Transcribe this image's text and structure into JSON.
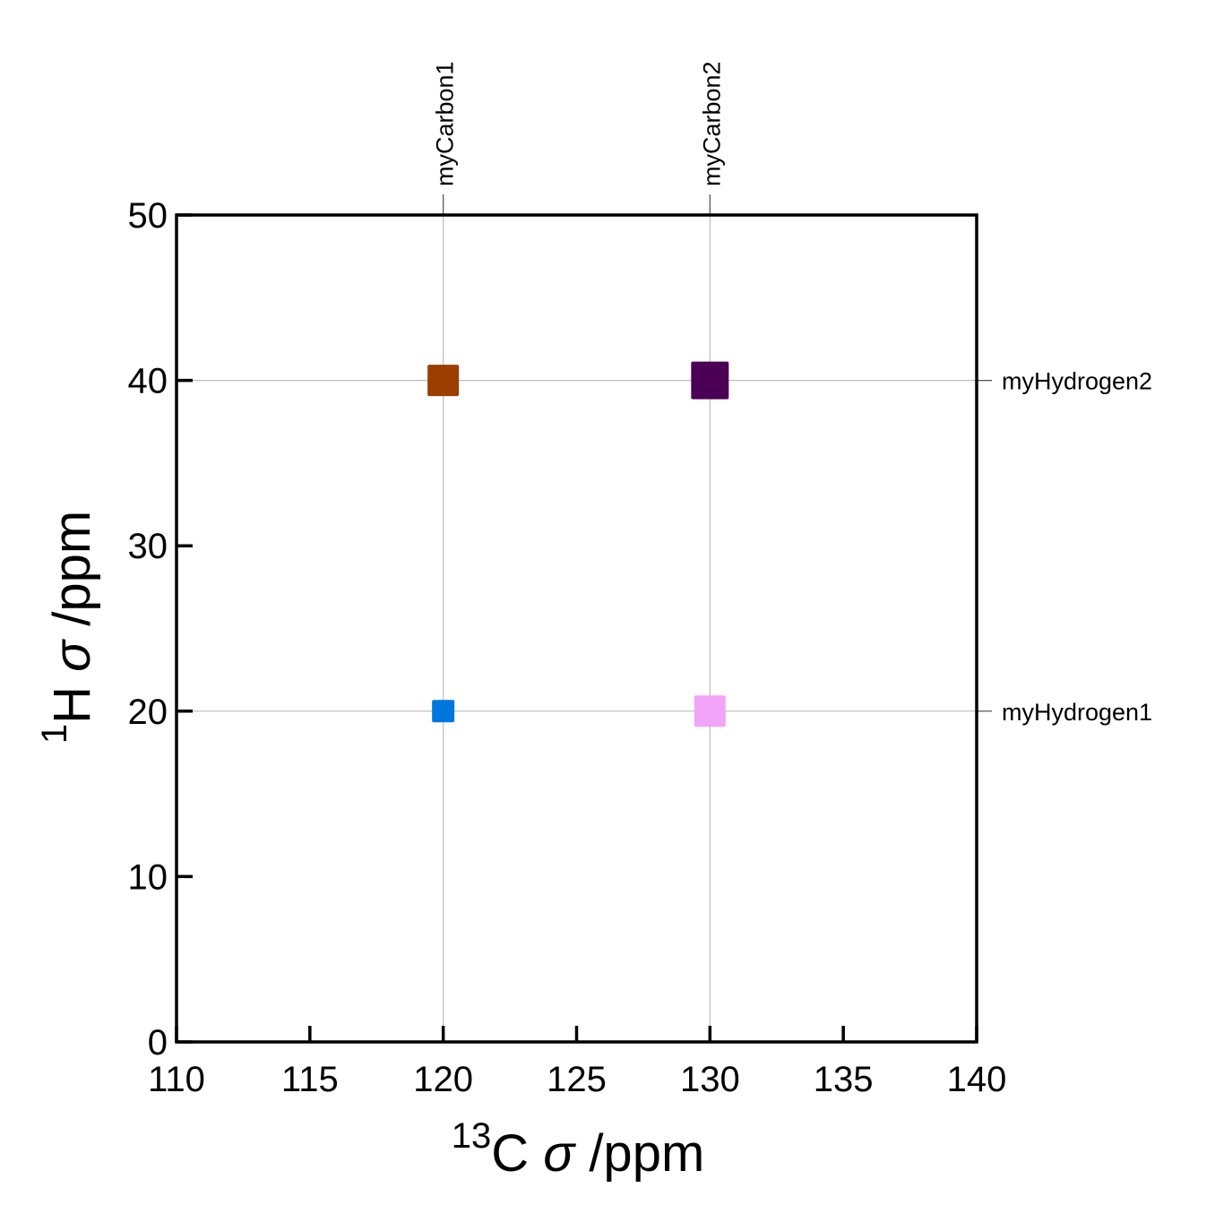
{
  "chart_data": {
    "type": "scatter",
    "xlabel": {
      "sup": "13",
      "main": "C ",
      "sym": "σ",
      "unit": " /ppm"
    },
    "ylabel": {
      "sup": "1",
      "main": "H ",
      "sym": "σ",
      "unit": " /ppm"
    },
    "xlim": [
      110,
      140
    ],
    "ylim": [
      0,
      50
    ],
    "xticks": [
      110,
      115,
      120,
      125,
      130,
      135,
      140
    ],
    "yticks": [
      0,
      10,
      20,
      30,
      40,
      50
    ],
    "grid": "only at labelled positions",
    "top_labels": [
      {
        "label": "myCarbon1",
        "x": 120
      },
      {
        "label": "myCarbon2",
        "x": 130
      }
    ],
    "right_labels": [
      {
        "label": "myHydrogen1",
        "y": 20
      },
      {
        "label": "myHydrogen2",
        "y": 40
      }
    ],
    "points": [
      {
        "x": 120,
        "y": 40,
        "color": "#9a3f00",
        "marker": "square"
      },
      {
        "x": 130,
        "y": 40,
        "color": "#4b0055",
        "marker": "square"
      },
      {
        "x": 120,
        "y": 20,
        "color": "#0077dd",
        "marker": "square"
      },
      {
        "x": 130,
        "y": 20,
        "color": "#f2a4f8",
        "marker": "square"
      }
    ]
  }
}
